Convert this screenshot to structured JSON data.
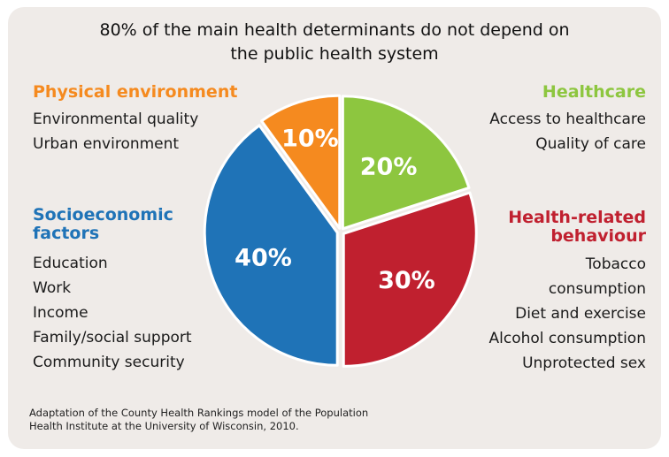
{
  "chart_data": {
    "type": "pie",
    "title": "80% of the main health determinants do not depend on the public health system",
    "slices": [
      {
        "label": "Healthcare",
        "value": 20,
        "display": "20%",
        "color": "#8dc63f"
      },
      {
        "label": "Health-related behaviour",
        "value": 30,
        "display": "30%",
        "color": "#c0202f"
      },
      {
        "label": "Socioeconomic factors",
        "value": 40,
        "display": "40%",
        "color": "#1f73b7"
      },
      {
        "label": "Physical environment",
        "value": 10,
        "display": "10%",
        "color": "#f58a1f"
      }
    ],
    "start_angle_deg": 0,
    "direction": "clockwise"
  },
  "title_lines": [
    "80% of the main health determinants do not depend on",
    "the public health system"
  ],
  "categories": {
    "physical": {
      "title": "Physical environment",
      "color": "#f58a1f",
      "items": [
        "Environmental quality",
        "Urban environment"
      ]
    },
    "healthcare": {
      "title": "Healthcare",
      "color": "#8dc63f",
      "items": [
        "Access to healthcare",
        "Quality of care"
      ]
    },
    "socio": {
      "title_lines": [
        "Socioeconomic",
        "factors"
      ],
      "color": "#1f73b7",
      "items": [
        "Education",
        "Work",
        "Income",
        "Family/social support",
        "Community security"
      ]
    },
    "behaviour": {
      "title_lines": [
        "Health-related",
        "behaviour"
      ],
      "color": "#c0202f",
      "items": [
        "Tobacco",
        "consumption",
        "Diet and exercise",
        "Alcohol consumption",
        "Unprotected sex"
      ]
    }
  },
  "footnote_lines": [
    "Adaptation of the County Health Rankings model of the Population",
    "Health Institute at the University of Wisconsin, 2010."
  ]
}
